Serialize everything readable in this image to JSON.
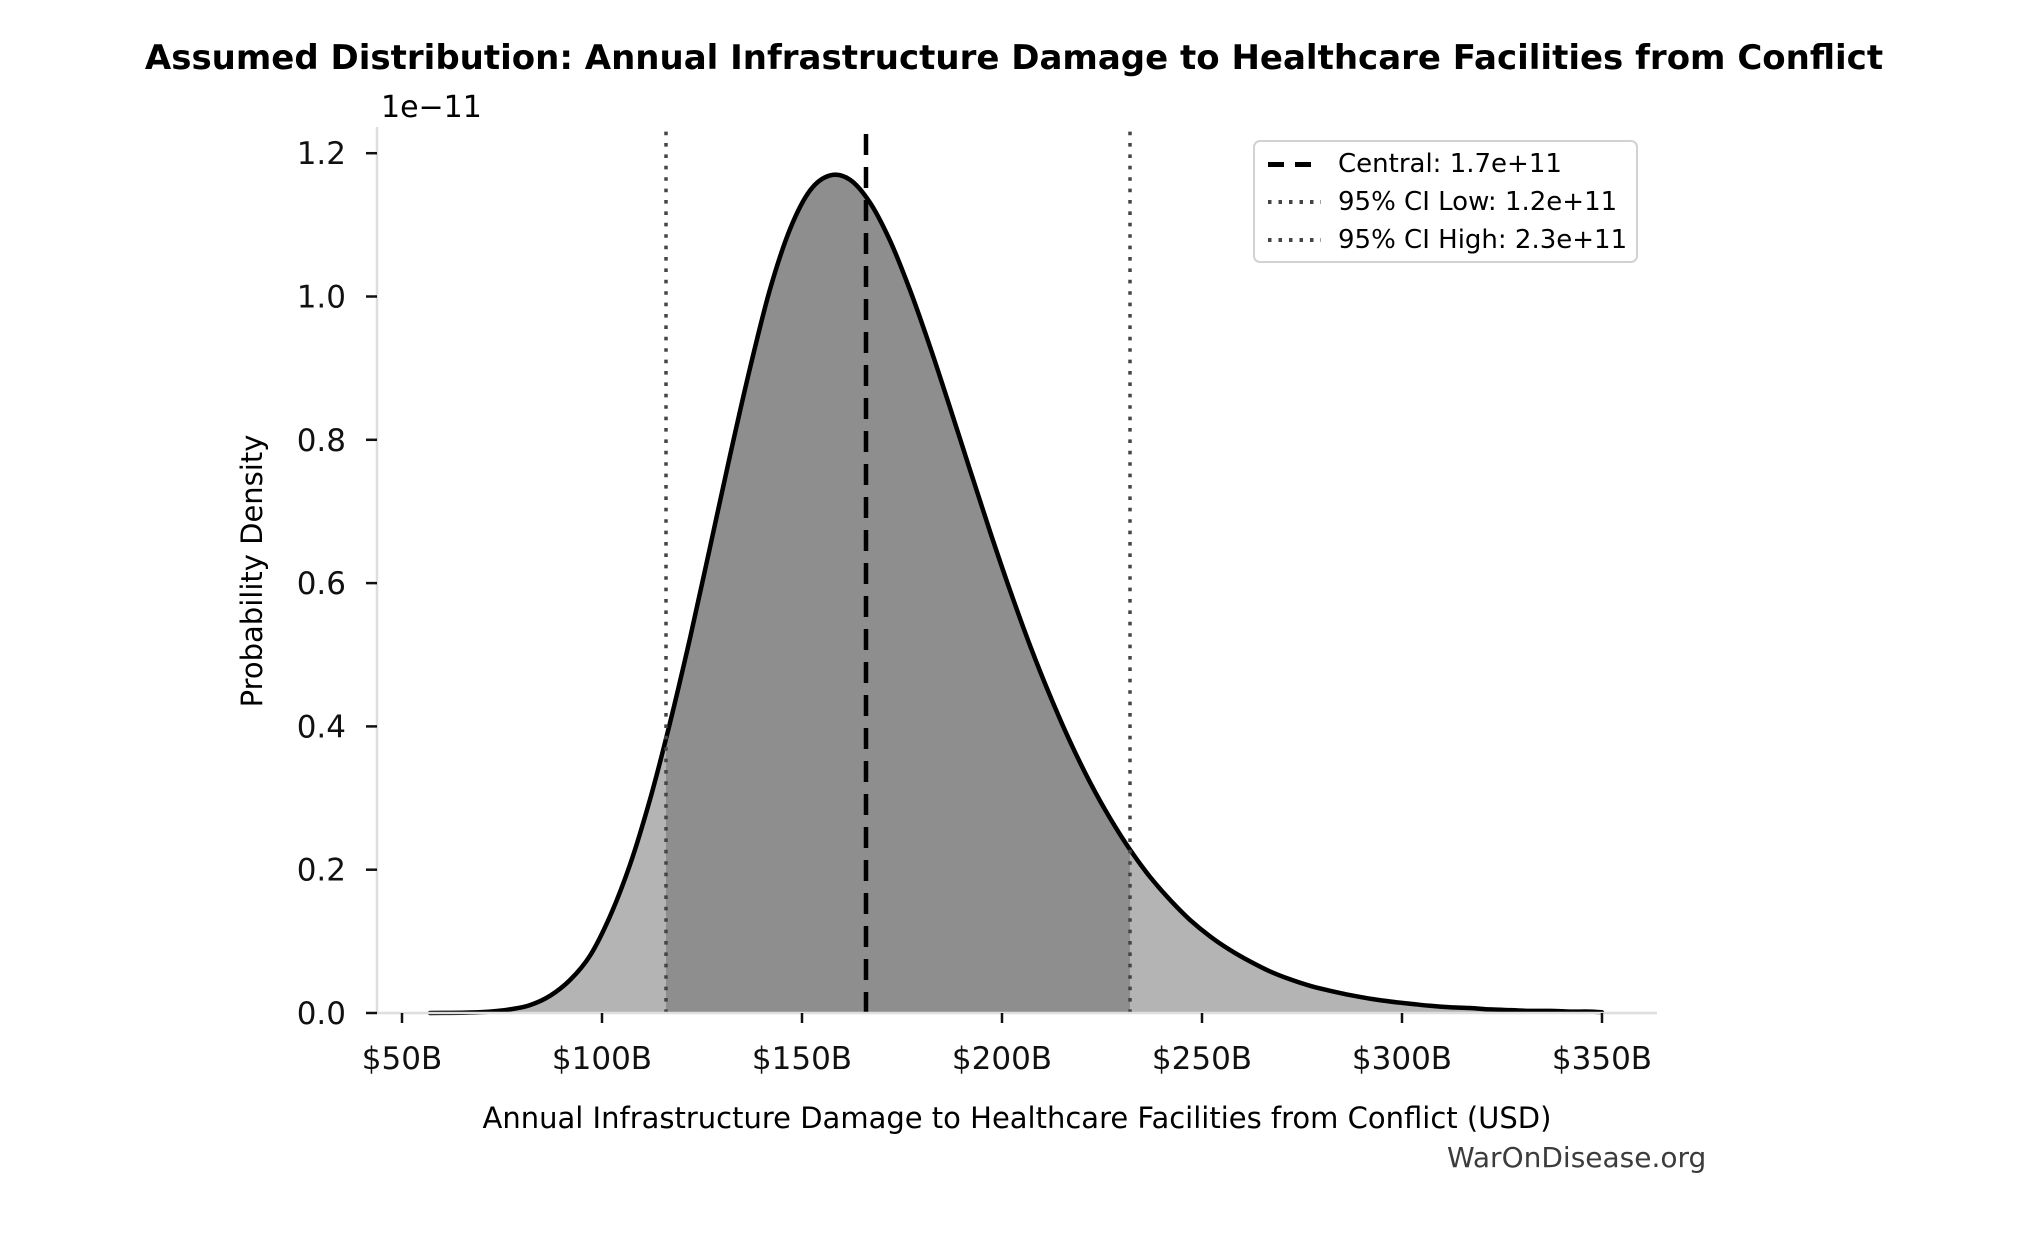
{
  "title": "Assumed Distribution: Annual Infrastructure Damage to Healthcare Facilities from Conflict",
  "watermark": "WarOnDisease.org",
  "x_axis": {
    "label": "Annual Infrastructure Damage to Healthcare Facilities from Conflict (USD)",
    "ticks": [
      {
        "value": 50,
        "label": "$50B"
      },
      {
        "value": 100,
        "label": "$100B"
      },
      {
        "value": 150,
        "label": "$150B"
      },
      {
        "value": 200,
        "label": "$200B"
      },
      {
        "value": 250,
        "label": "$250B"
      },
      {
        "value": 300,
        "label": "$300B"
      },
      {
        "value": 350,
        "label": "$350B"
      }
    ]
  },
  "y_axis": {
    "label": "Probability Density",
    "offset_text": "1e−11",
    "ticks": [
      {
        "value": 0.0,
        "label": "0.0"
      },
      {
        "value": 0.2,
        "label": "0.2"
      },
      {
        "value": 0.4,
        "label": "0.4"
      },
      {
        "value": 0.6,
        "label": "0.6"
      },
      {
        "value": 0.8,
        "label": "0.8"
      },
      {
        "value": 1.0,
        "label": "1.0"
      },
      {
        "value": 1.2,
        "label": "1.2"
      }
    ]
  },
  "legend": {
    "items": [
      {
        "style": "dashed",
        "color": "#000000",
        "label": "Central: 1.7e+11"
      },
      {
        "style": "dotted",
        "color": "#454545",
        "label": "95% CI Low: 1.2e+11"
      },
      {
        "style": "dotted",
        "color": "#454545",
        "label": "95% CI High: 2.3e+11"
      }
    ]
  },
  "colors": {
    "curve": "#000000",
    "fill_light": "#b4b4b4",
    "fill_dark": "#8e8e8e",
    "spine": "#dedede",
    "tick": "#111111",
    "central_line": "#000000",
    "ci_line": "#454545",
    "watermark": "#3c3c3c"
  },
  "chart_data": {
    "type": "area",
    "title": "Assumed Distribution: Annual Infrastructure Damage to Healthcare Facilities from Conflict",
    "xlabel": "Annual Infrastructure Damage to Healthcare Facilities from Conflict (USD)",
    "ylabel": "Probability Density",
    "x_unit": "billions of USD",
    "y_unit": "probability density × 1e-11",
    "xlim_billions": [
      43.75,
      363.75
    ],
    "ylim": [
      0,
      1.2365
    ],
    "grid": false,
    "legend_position": "upper right",
    "curve_points": [
      [
        57,
        0
      ],
      [
        62,
        0.0002
      ],
      [
        67,
        0.0007
      ],
      [
        72,
        0.002
      ],
      [
        77,
        0.005
      ],
      [
        82,
        0.011
      ],
      [
        87,
        0.024
      ],
      [
        92,
        0.046
      ],
      [
        97,
        0.08
      ],
      [
        102,
        0.135
      ],
      [
        107,
        0.207
      ],
      [
        112,
        0.298
      ],
      [
        117,
        0.405
      ],
      [
        122,
        0.523
      ],
      [
        127,
        0.65
      ],
      [
        132,
        0.778
      ],
      [
        137,
        0.9
      ],
      [
        142,
        1.01
      ],
      [
        147,
        1.094
      ],
      [
        152,
        1.148
      ],
      [
        157,
        1.169
      ],
      [
        162,
        1.163
      ],
      [
        167,
        1.131
      ],
      [
        172,
        1.078
      ],
      [
        177,
        1.009
      ],
      [
        182,
        0.93
      ],
      [
        187,
        0.845
      ],
      [
        192,
        0.758
      ],
      [
        197,
        0.672
      ],
      [
        202,
        0.59
      ],
      [
        207,
        0.513
      ],
      [
        212,
        0.443
      ],
      [
        217,
        0.379
      ],
      [
        222,
        0.322
      ],
      [
        227,
        0.272
      ],
      [
        232,
        0.228
      ],
      [
        237,
        0.19
      ],
      [
        242,
        0.158
      ],
      [
        247,
        0.13
      ],
      [
        252,
        0.107
      ],
      [
        257,
        0.088
      ],
      [
        262,
        0.072
      ],
      [
        267,
        0.058
      ],
      [
        272,
        0.047
      ],
      [
        277,
        0.038
      ],
      [
        282,
        0.031
      ],
      [
        287,
        0.025
      ],
      [
        292,
        0.02
      ],
      [
        297,
        0.016
      ],
      [
        302,
        0.013
      ],
      [
        307,
        0.01
      ],
      [
        312,
        0.008
      ],
      [
        317,
        0.007
      ],
      [
        322,
        0.005
      ],
      [
        327,
        0.004
      ],
      [
        332,
        0.003
      ],
      [
        337,
        0.003
      ],
      [
        342,
        0.002
      ],
      [
        347,
        0.002
      ],
      [
        350,
        0.001
      ]
    ],
    "central_line": {
      "x_billions": 166,
      "label": "Central: 1.7e+11"
    },
    "ci_low_line": {
      "x_billions": 116,
      "label": "95% CI Low: 1.2e+11"
    },
    "ci_high_line": {
      "x_billions": 232,
      "label": "95% CI High: 2.3e+11"
    },
    "shaded_ci_region_billions": [
      116,
      232
    ],
    "peak": {
      "x_billions": 158.5,
      "density": 1.17
    }
  }
}
